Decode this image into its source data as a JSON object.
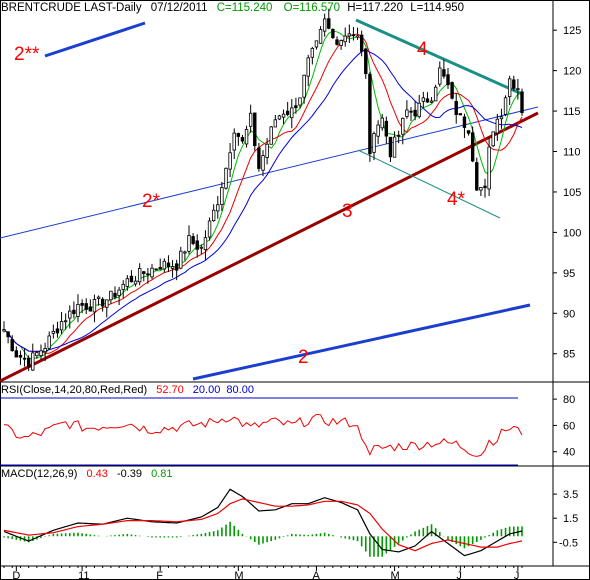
{
  "header": {
    "symbol": "BRENTCRUDE LAST-Daily",
    "date": "07/12/2011",
    "close": "C=115.240",
    "open": "O=116.570",
    "high": "H=117.220",
    "low": "L=114.950"
  },
  "rsi_label": {
    "name": "RSI(Close,14,20,80,Red,Red)",
    "value": "52.70",
    "levels": "20.00  80.00"
  },
  "macd_label": {
    "name": "MACD(12,26,9)",
    "macd": "0.43",
    "signal": "-0.39",
    "hist": "0.81"
  },
  "colors": {
    "header_green": "#009900",
    "value_red": "#ff0000",
    "value_blue": "#0000cc",
    "annotation_red": "#ff0000",
    "trend_blue": "#1a3fcf",
    "trend_darkred": "#990000",
    "trend_teal": "#1a8f86",
    "ma_green": "#00bb00",
    "ma_red": "#ee0000",
    "ma_blue": "#0000dd",
    "macd_black": "#000000",
    "macd_red": "#ee0000",
    "hist_green": "#009900"
  },
  "chart_data": [
    {
      "type": "candlestick",
      "title": "BRENTCRUDE LAST-Daily",
      "ylim": [
        82,
        127
      ],
      "y_ticks": [
        85,
        90,
        95,
        100,
        105,
        110,
        115,
        120,
        125
      ],
      "x_ticks": [
        "D",
        "11",
        "F",
        "M",
        "A",
        "M",
        "J",
        "J"
      ],
      "series": [
        {
          "name": "Price",
          "values": [
            [
              0,
              88
            ],
            [
              3,
              85
            ],
            [
              6,
              84
            ],
            [
              10,
              86
            ],
            [
              14,
              89
            ],
            [
              18,
              91
            ],
            [
              22,
              91
            ],
            [
              26,
              92
            ],
            [
              30,
              94
            ],
            [
              34,
              95
            ],
            [
              38,
              96
            ],
            [
              42,
              96
            ],
            [
              45,
              99
            ],
            [
              48,
              98
            ],
            [
              52,
              104
            ],
            [
              54,
              108
            ],
            [
              56,
              113
            ],
            [
              58,
              111
            ],
            [
              60,
              114
            ],
            [
              62,
              108
            ],
            [
              64,
              111
            ],
            [
              66,
              114
            ],
            [
              68,
              115
            ],
            [
              70,
              115
            ],
            [
              72,
              117
            ],
            [
              74,
              121
            ],
            [
              76,
              123
            ],
            [
              78,
              126
            ],
            [
              80,
              124
            ],
            [
              82,
              124
            ],
            [
              84,
              125
            ],
            [
              86,
              124
            ],
            [
              88,
              120
            ],
            [
              89,
              109
            ],
            [
              90,
              113
            ],
            [
              92,
              114
            ],
            [
              94,
              110
            ],
            [
              96,
              112
            ],
            [
              98,
              115
            ],
            [
              100,
              115
            ],
            [
              102,
              116
            ],
            [
              104,
              117
            ],
            [
              106,
              120
            ],
            [
              108,
              118
            ],
            [
              109,
              116
            ],
            [
              111,
              114
            ],
            [
              113,
              113
            ],
            [
              115,
              106
            ],
            [
              117,
              105
            ],
            [
              118,
              110
            ],
            [
              119,
              113
            ],
            [
              121,
              115
            ],
            [
              123,
              119
            ],
            [
              125,
              118
            ],
            [
              126,
              115.24
            ]
          ]
        }
      ],
      "moving_averages": true,
      "annotations": [
        "2**",
        "2*",
        "2",
        "3",
        "4",
        "4*"
      ]
    },
    {
      "type": "line",
      "title": "RSI(Close,14,20,80,Red,Red)",
      "ylim": [
        20,
        90
      ],
      "y_ticks": [
        40,
        60,
        80
      ],
      "reference_lines": [
        20,
        80
      ],
      "last_value": 52.7,
      "series": [
        {
          "name": "RSI",
          "values": [
            [
              0,
              58
            ],
            [
              5,
              50
            ],
            [
              10,
              55
            ],
            [
              15,
              62
            ],
            [
              20,
              58
            ],
            [
              25,
              60
            ],
            [
              30,
              62
            ],
            [
              35,
              57
            ],
            [
              40,
              58
            ],
            [
              45,
              60
            ],
            [
              50,
              62
            ],
            [
              55,
              67
            ],
            [
              60,
              58
            ],
            [
              65,
              63
            ],
            [
              70,
              60
            ],
            [
              75,
              65
            ],
            [
              80,
              63
            ],
            [
              85,
              62
            ],
            [
              88,
              48
            ],
            [
              89,
              35
            ],
            [
              90,
              42
            ],
            [
              95,
              44
            ],
            [
              100,
              45
            ],
            [
              105,
              47
            ],
            [
              110,
              46
            ],
            [
              114,
              40
            ],
            [
              116,
              38
            ],
            [
              118,
              48
            ],
            [
              120,
              50
            ],
            [
              122,
              57
            ],
            [
              124,
              58
            ],
            [
              126,
              52.7
            ]
          ]
        }
      ]
    },
    {
      "type": "line",
      "title": "MACD(12,26,9)",
      "ylim": [
        -2.3,
        5.5
      ],
      "y_ticks": [
        3.5,
        1.5,
        -0.5
      ],
      "last_values": {
        "macd": 0.43,
        "signal": -0.39,
        "histogram": 0.81
      },
      "series": [
        {
          "name": "MACD",
          "values": [
            [
              0,
              0.4
            ],
            [
              6,
              -0.4
            ],
            [
              12,
              0.5
            ],
            [
              18,
              1.1
            ],
            [
              24,
              1.0
            ],
            [
              30,
              1.5
            ],
            [
              36,
              1.2
            ],
            [
              42,
              1.1
            ],
            [
              48,
              1.6
            ],
            [
              52,
              2.4
            ],
            [
              55,
              3.9
            ],
            [
              58,
              3.3
            ],
            [
              62,
              2.1
            ],
            [
              66,
              2.2
            ],
            [
              70,
              2.7
            ],
            [
              74,
              2.7
            ],
            [
              78,
              3.2
            ],
            [
              82,
              2.8
            ],
            [
              86,
              2.2
            ],
            [
              89,
              0.2
            ],
            [
              92,
              -1.1
            ],
            [
              96,
              -1.3
            ],
            [
              100,
              -0.8
            ],
            [
              104,
              0.4
            ],
            [
              108,
              -0.6
            ],
            [
              112,
              -1.6
            ],
            [
              116,
              -1.2
            ],
            [
              120,
              -0.4
            ],
            [
              123,
              0.2
            ],
            [
              126,
              0.43
            ]
          ]
        },
        {
          "name": "Signal",
          "values": [
            [
              0,
              0.5
            ],
            [
              6,
              0.1
            ],
            [
              12,
              0.3
            ],
            [
              18,
              0.8
            ],
            [
              24,
              1.0
            ],
            [
              30,
              1.3
            ],
            [
              36,
              1.3
            ],
            [
              42,
              1.2
            ],
            [
              48,
              1.4
            ],
            [
              52,
              1.9
            ],
            [
              55,
              2.7
            ],
            [
              58,
              3.1
            ],
            [
              62,
              2.8
            ],
            [
              66,
              2.5
            ],
            [
              70,
              2.5
            ],
            [
              74,
              2.6
            ],
            [
              78,
              2.9
            ],
            [
              82,
              2.9
            ],
            [
              86,
              2.6
            ],
            [
              89,
              1.9
            ],
            [
              92,
              0.6
            ],
            [
              96,
              -0.7
            ],
            [
              100,
              -1.2
            ],
            [
              104,
              -0.6
            ],
            [
              108,
              -0.3
            ],
            [
              112,
              -0.6
            ],
            [
              116,
              -0.9
            ],
            [
              120,
              -0.9
            ],
            [
              123,
              -0.6
            ],
            [
              126,
              -0.39
            ]
          ]
        }
      ]
    }
  ]
}
